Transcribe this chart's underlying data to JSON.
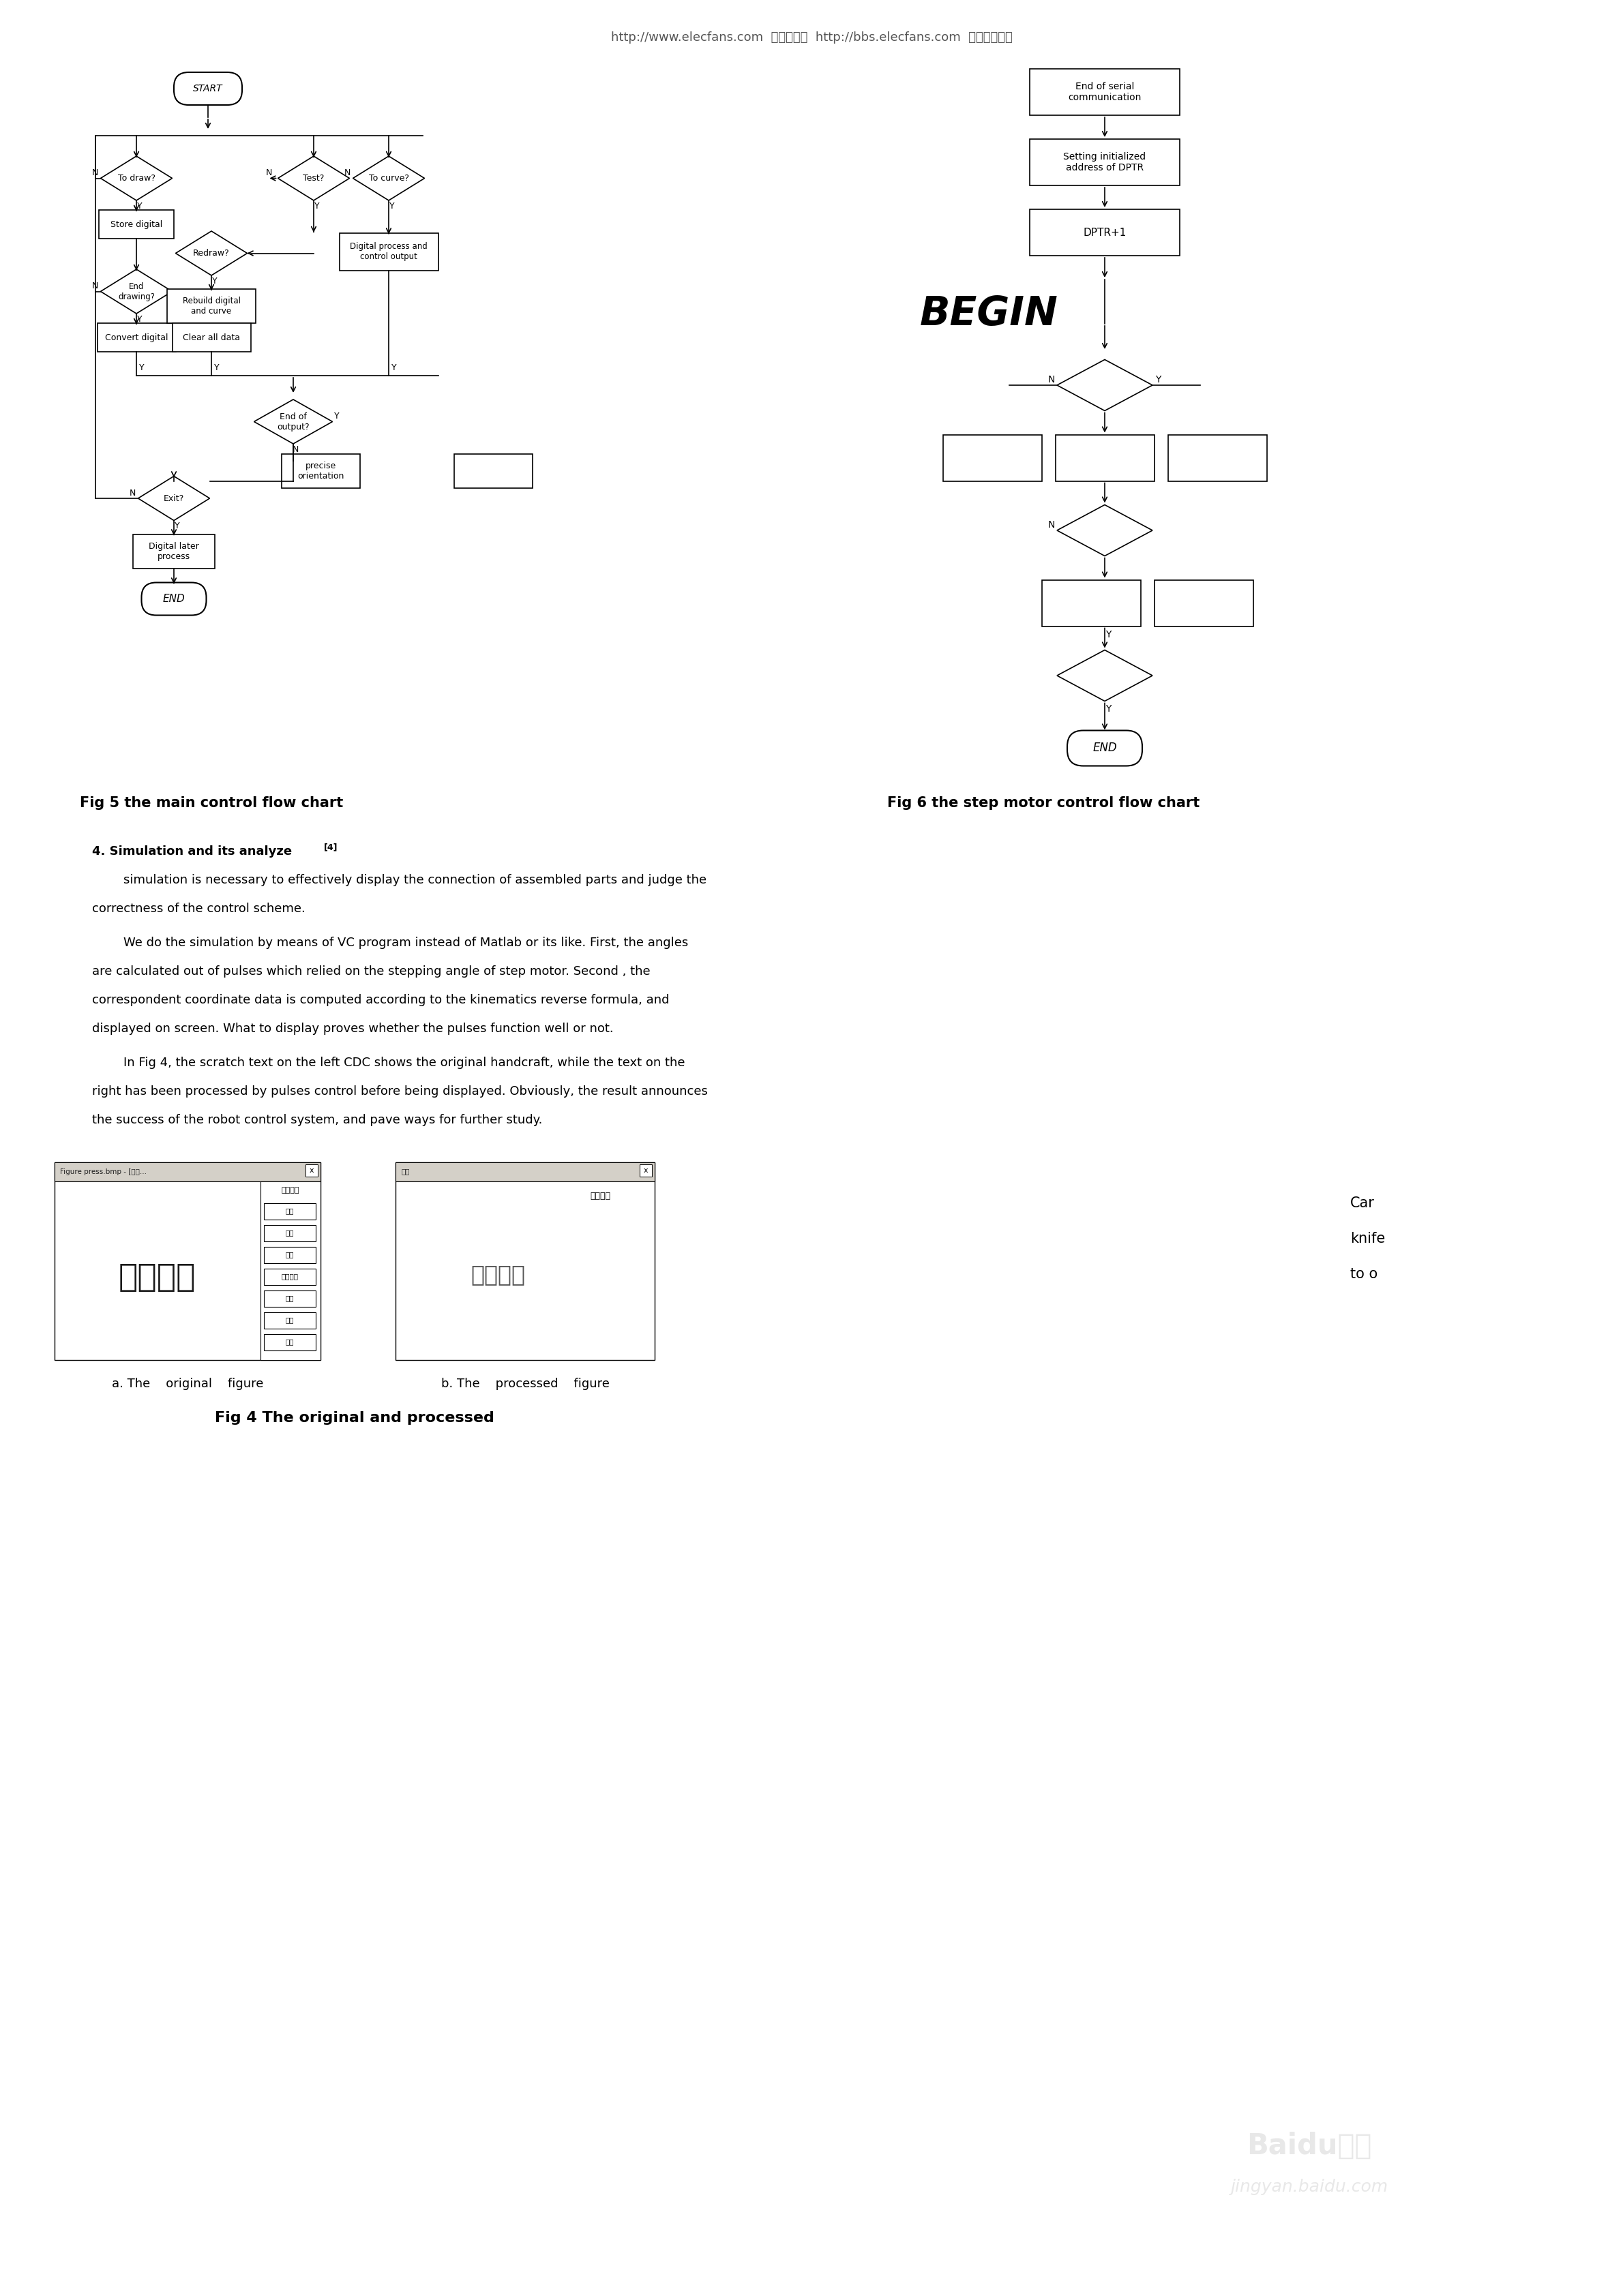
{
  "header_text": "http://www.elecfans.com  电子发烧友  http://bbs.elecfans.com  电子技术论坛",
  "fig_caption_5": "Fig 5 the main control flow chart",
  "fig_caption_6": "Fig 6 the step motor control flow chart",
  "section_title": "4. Simulation and its analyze",
  "superscript": "[4]",
  "p1_lines": [
    "        simulation is necessary to effectively display the connection of assembled parts and judge the",
    "correctness of the control scheme."
  ],
  "p2_lines": [
    "        We do the simulation by means of VC program instead of Matlab or its like. First, the angles",
    "are calculated out of pulses which relied on the stepping angle of step motor. Second , the",
    "correspondent coordinate data is computed according to the kinematics reverse formula, and",
    "displayed on screen. What to display proves whether the pulses function well or not."
  ],
  "p3_lines": [
    "        In Fig 4, the scratch text on the left CDC shows the original handcraft, while the text on the",
    "right has been processed by pulses control before being displayed. Obviously, the result announces",
    "the success of the robot control system, and pave ways for further study."
  ],
  "fig4_caption_a": "a. The    original    figure",
  "fig4_caption_b": "b. The    processed    figure",
  "fig4_title": "Fig 4 The original and processed",
  "right_text_lines": [
    "Car",
    "knife",
    "to o"
  ],
  "bg_color": "#ffffff"
}
